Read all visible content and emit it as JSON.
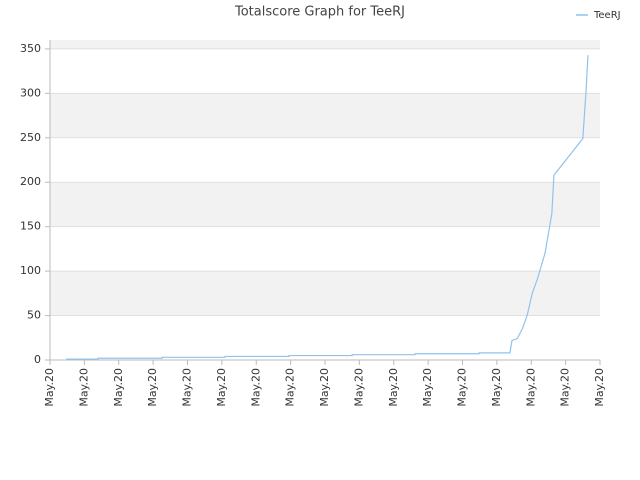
{
  "chart_data": {
    "type": "line",
    "title": "Totalscore Graph for TeeRJ",
    "xlim": [
      0,
      16
    ],
    "xticks": [
      {
        "value": 0,
        "label": "May.20"
      },
      {
        "value": 1,
        "label": "May.20"
      },
      {
        "value": 2,
        "label": "May.20"
      },
      {
        "value": 3,
        "label": "May.20"
      },
      {
        "value": 4,
        "label": "May.20"
      },
      {
        "value": 5,
        "label": "May.20"
      },
      {
        "value": 6,
        "label": "May.20"
      },
      {
        "value": 7,
        "label": "May.20"
      },
      {
        "value": 8,
        "label": "May.20"
      },
      {
        "value": 9,
        "label": "May.20"
      },
      {
        "value": 10,
        "label": "May.20"
      },
      {
        "value": 11,
        "label": "May.20"
      },
      {
        "value": 12,
        "label": "May.20"
      },
      {
        "value": 13,
        "label": "May.20"
      },
      {
        "value": 14,
        "label": "May.20"
      },
      {
        "value": 15,
        "label": "May.20"
      },
      {
        "value": 16,
        "label": "May.20"
      }
    ],
    "ylim": [
      0,
      360
    ],
    "yticks": [
      0,
      50,
      100,
      150,
      200,
      250,
      300,
      350
    ],
    "grid": true,
    "legend": "top-right",
    "series": [
      {
        "name": "TeeRJ",
        "color": "#8fc3ee",
        "x": [
          0.47,
          1.4,
          1.4,
          3.26,
          3.26,
          5.09,
          5.09,
          6.95,
          6.95,
          8.79,
          8.79,
          10.62,
          10.62,
          12.48,
          12.48,
          13.38,
          13.44,
          13.59,
          13.74,
          13.88,
          14.03,
          14.17,
          14.4,
          14.6,
          14.66,
          15.5,
          15.59,
          15.65
        ],
        "values": [
          1,
          1,
          2,
          2,
          3,
          3,
          4,
          4,
          5,
          5,
          6,
          6,
          7,
          7,
          8,
          8,
          22,
          24,
          35,
          50,
          75,
          90,
          120,
          165,
          208,
          249,
          300,
          343
        ]
      }
    ]
  }
}
